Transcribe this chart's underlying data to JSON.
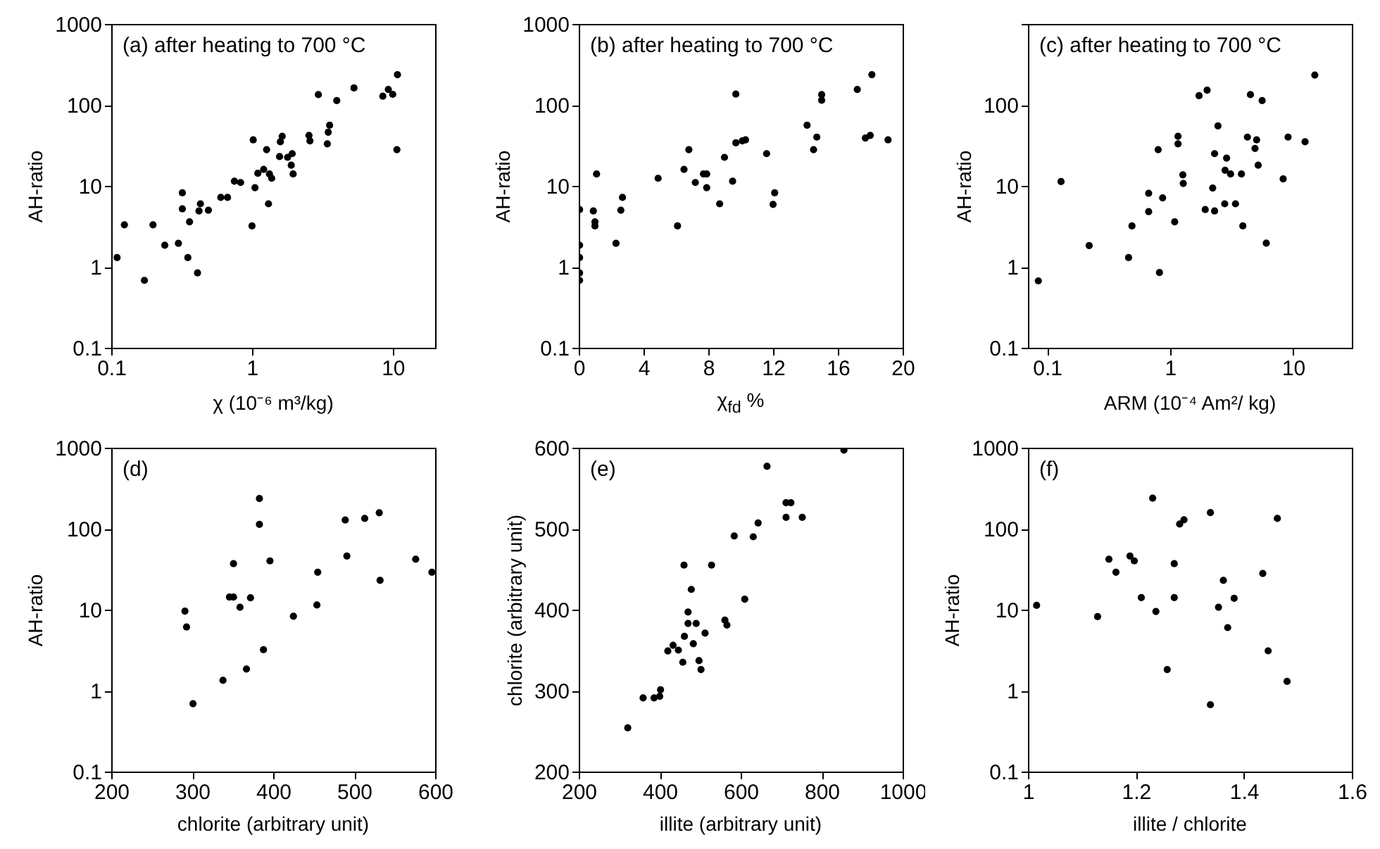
{
  "chart_data": [
    {
      "type": "scatter",
      "annotations": [
        "(a) after heating to 700 °C"
      ],
      "xlabel": "χ (10⁻⁶ m³/kg)",
      "ylabel": "AH-ratio",
      "log": "xy",
      "grid": false,
      "marker": "circle",
      "xlim": [
        0.1,
        20
      ],
      "xticks": [
        0.1,
        1,
        10
      ],
      "ylim": [
        0.1,
        1000
      ],
      "yticks": [
        0.1,
        1,
        10,
        100,
        1000
      ],
      "series": [
        {
          "color": "#000000",
          "x": [
            0.11,
            0.124,
            0.172,
            0.198,
            0.24,
            0.3,
            0.32,
            0.32,
            0.35,
            0.36,
            0.41,
            0.42,
            0.43,
            0.49,
            0.6,
            0.67,
            0.75,
            0.83,
            1.0,
            1.02,
            1.05,
            1.1,
            1.21,
            1.27,
            1.31,
            1.33,
            1.38,
            1.57,
            1.59,
            1.64,
            1.79,
            1.9,
            1.93,
            1.96,
            2.54,
            2.58,
            2.96,
            3.43,
            3.48,
            3.56,
            4.0,
            5.3,
            8.5,
            9.3,
            10,
            10.8,
            10.7
          ],
          "values": [
            1.3,
            3.3,
            0.68,
            3.3,
            1.85,
            1.95,
            5.2,
            8.2,
            1.3,
            3.6,
            0.84,
            4.9,
            6,
            5,
            7.2,
            7.2,
            11.4,
            11,
            3.2,
            37,
            9.5,
            14.3,
            16,
            28,
            6,
            14,
            12.4,
            23,
            35,
            41,
            22.5,
            18,
            25,
            14,
            42,
            36,
            134,
            33,
            46,
            56,
            113,
            162,
            128,
            155,
            135,
            236,
            28
          ]
        }
      ]
    },
    {
      "type": "scatter",
      "annotations": [
        "(b) after heating to 700 °C"
      ],
      "xlabel": "χ$_{fd}$ %",
      "ylabel": "AH-ratio",
      "log": "y",
      "grid": false,
      "marker": "circle",
      "xlim": [
        0,
        20
      ],
      "xticks": [
        0,
        4,
        8,
        12,
        16,
        20
      ],
      "ylim": [
        0.1,
        1000
      ],
      "yticks": [
        0.1,
        1,
        10,
        100,
        1000
      ],
      "series": [
        {
          "color": "#000000",
          "x": [
            0.05,
            0.05,
            0.05,
            0.05,
            0.05,
            0.9,
            1.0,
            1.0,
            1.1,
            2.3,
            2.6,
            2.7,
            4.9,
            6.1,
            6.5,
            6.8,
            7.2,
            7.7,
            7.9,
            7.9,
            8.7,
            9.0,
            9.5,
            9.7,
            9.7,
            10.1,
            10.3,
            11.6,
            12.0,
            12.1,
            14.1,
            14.5,
            14.7,
            15.0,
            15.0,
            17.2,
            17.7,
            18.0,
            18.1,
            19.1
          ],
          "values": [
            5.1,
            1.85,
            1.3,
            0.84,
            0.68,
            4.9,
            3.6,
            3.2,
            14,
            1.95,
            5,
            7.2,
            12.4,
            3.2,
            16,
            28,
            11,
            14,
            14,
            9.5,
            6,
            22.5,
            11.4,
            136,
            34,
            36,
            37,
            25,
            5.9,
            8.2,
            56,
            28,
            40,
            114,
            134,
            155,
            39,
            42,
            236,
            37
          ]
        }
      ]
    },
    {
      "type": "scatter",
      "annotations": [
        "(c) after heating to 700 °C"
      ],
      "xlabel": "ARM (10⁻⁴ Am²/ kg)",
      "ylabel": "AH-ratio",
      "log": "xy",
      "grid": false,
      "marker": "circle",
      "xlim": [
        0.07,
        30
      ],
      "xticks": [
        0.1,
        1,
        10
      ],
      "ylim": [
        0.1,
        1000
      ],
      "yticks": [
        0.1,
        1,
        10,
        100,
        {
          "value": 1000,
          "label": null
        }
      ],
      "series": [
        {
          "color": "#000000",
          "x": [
            0.085,
            0.13,
            0.22,
            0.46,
            0.49,
            0.8,
            0.82,
            0.67,
            0.67,
            0.87,
            1.09,
            1.16,
            1.16,
            1.27,
            1.28,
            1.72,
            1.93,
            2.0,
            2.22,
            2.3,
            2.3,
            2.45,
            2.78,
            2.8,
            2.88,
            3.1,
            3.4,
            3.8,
            3.9,
            4.25,
            4.5,
            4.9,
            5.05,
            5.2,
            5.6,
            6.05,
            8.3,
            9.1,
            12.5,
            15
          ],
          "values": [
            0.67,
            11.3,
            1.83,
            1.3,
            3.2,
            28,
            0.85,
            4.8,
            8.1,
            7.1,
            3.6,
            41,
            33,
            13.7,
            10.7,
            130,
            5.1,
            152,
            9.4,
            25,
            4.9,
            55,
            6,
            15.6,
            22,
            14,
            6,
            14,
            3.2,
            40,
            134,
            29,
            37,
            18,
            113,
            1.96,
            12.2,
            40,
            35,
            234
          ]
        }
      ]
    },
    {
      "type": "scatter",
      "annotations": [
        "(d)"
      ],
      "xlabel": "chlorite (arbitrary unit)",
      "ylabel": "AH-ratio",
      "log": "y",
      "grid": false,
      "marker": "circle",
      "xlim": [
        200,
        600
      ],
      "xticks": [
        200,
        300,
        400,
        500,
        600
      ],
      "ylim": [
        0.1,
        1000
      ],
      "yticks": [
        0.1,
        1,
        10,
        100,
        1000
      ],
      "series": [
        {
          "color": "#000000",
          "x": [
            291,
            293,
            301,
            338,
            346,
            351,
            351,
            359,
            367,
            372,
            383,
            383,
            388,
            396,
            425,
            454,
            455,
            489,
            491,
            513,
            531,
            532,
            576,
            596
          ],
          "values": [
            9.6,
            6.1,
            0.69,
            1.34,
            14.3,
            14.3,
            37,
            10.7,
            1.85,
            14,
            236,
            113,
            3.2,
            40,
            8.3,
            11.4,
            29,
            128,
            46,
            134,
            157,
            23,
            42,
            29
          ]
        }
      ]
    },
    {
      "type": "scatter",
      "annotations": [
        "(e)"
      ],
      "xlabel": "illite (arbitrary unit)",
      "ylabel": "chlorite (arbitrary unit)",
      "grid": false,
      "marker": "circle",
      "xlim": [
        200,
        1000
      ],
      "xticks": [
        200,
        400,
        600,
        800,
        1000
      ],
      "ylim": [
        200,
        600
      ],
      "yticks": [
        200,
        300,
        400,
        500,
        600
      ],
      "series": [
        {
          "color": "#000000",
          "x": [
            321,
            359,
            386,
            400,
            402,
            420,
            433,
            446,
            457,
            461,
            460,
            470,
            470,
            478,
            483,
            490,
            497,
            502,
            512,
            528,
            561,
            566,
            584,
            610,
            631,
            643,
            665,
            712,
            712,
            724,
            752,
            855
          ],
          "values": [
            254,
            291,
            291,
            293,
            301,
            349,
            356,
            350,
            335,
            367,
            455,
            397,
            383,
            425,
            358,
            383,
            337,
            326,
            371,
            455,
            387,
            381,
            491,
            413,
            490,
            507,
            577,
            514,
            532,
            532,
            514,
            597
          ]
        }
      ]
    },
    {
      "type": "scatter",
      "annotations": [
        "(f)"
      ],
      "xlabel": "illite / chlorite",
      "ylabel": "AH-ratio",
      "log": "y",
      "grid": false,
      "marker": "circle",
      "xlim": [
        1,
        1.6
      ],
      "xticks": [
        1,
        1.2,
        1.4,
        1.6
      ],
      "ylim": [
        0.1,
        1000
      ],
      "yticks": [
        0.1,
        1,
        10,
        100,
        1000
      ],
      "series": [
        {
          "color": "#000000",
          "x": [
            1.016,
            1.129,
            1.15,
            1.163,
            1.189,
            1.197,
            1.21,
            1.231,
            1.237,
            1.258,
            1.271,
            1.271,
            1.281,
            1.289,
            1.338,
            1.338,
            1.353,
            1.362,
            1.37,
            1.382,
            1.435,
            1.445,
            1.462,
            1.48
          ],
          "values": [
            11.3,
            8.2,
            42,
            29,
            46,
            40,
            14.1,
            238,
            9.5,
            1.82,
            37,
            14.1,
            114,
            129,
            158,
            0.67,
            10.7,
            23,
            6,
            13.8,
            28,
            3.1,
            134,
            1.3
          ]
        }
      ]
    }
  ]
}
